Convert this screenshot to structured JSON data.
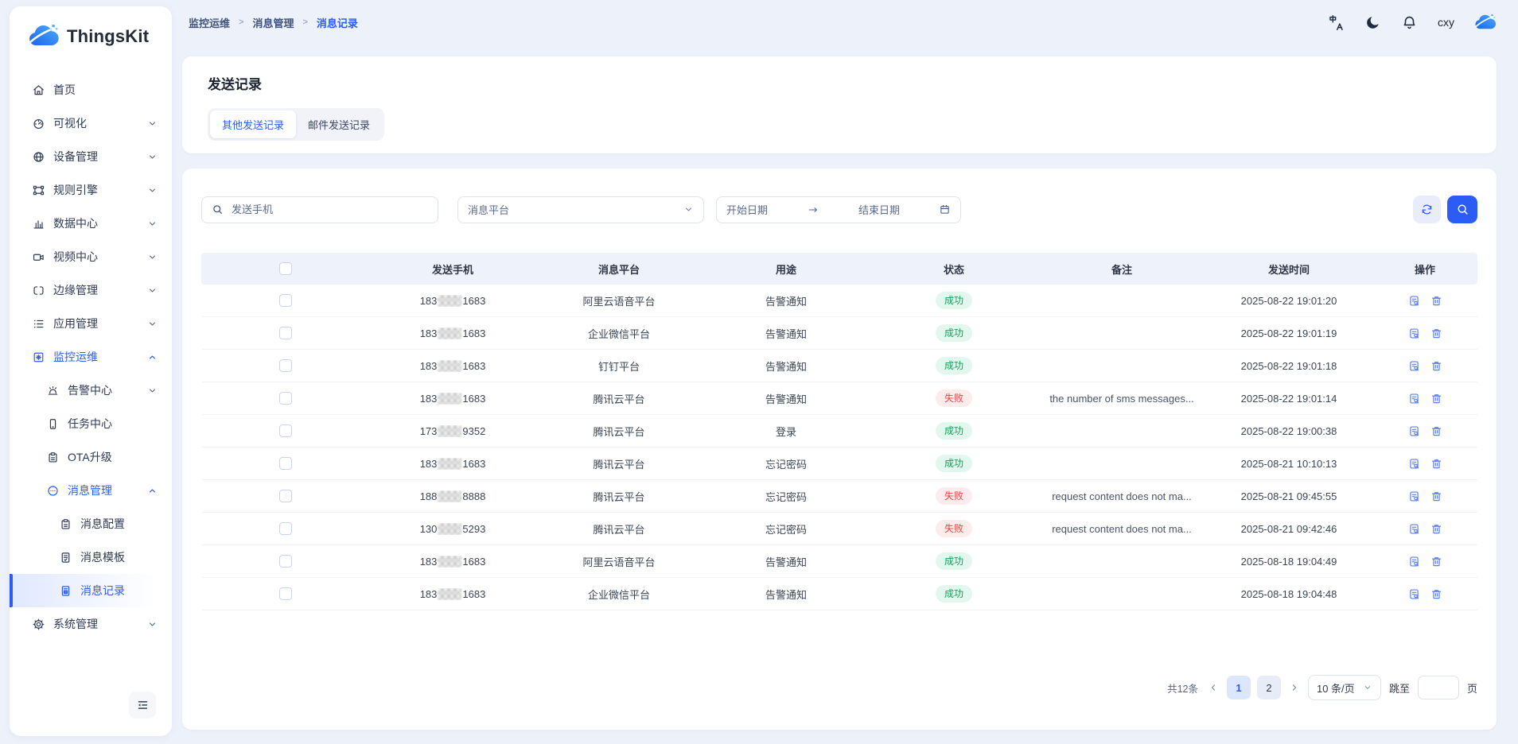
{
  "app": {
    "logo_text": "ThingsKit",
    "logo_icon": "cloud-logo-icon"
  },
  "topbar": {
    "breadcrumb": [
      "监控运维",
      "消息管理",
      "消息记录"
    ],
    "icons": [
      "translate-icon",
      "dark-mode-moon-icon",
      "notification-bell-icon"
    ],
    "username": "cxy",
    "avatar_icon": "cloud-avatar-icon"
  },
  "sidebar": {
    "items": [
      {
        "label": "首页",
        "icon": "home-icon",
        "depth": 0
      },
      {
        "label": "可视化",
        "icon": "visualization-icon",
        "depth": 0,
        "chevron": "down"
      },
      {
        "label": "设备管理",
        "icon": "device-icon",
        "depth": 0,
        "chevron": "down"
      },
      {
        "label": "规则引擎",
        "icon": "rule-engine-icon",
        "depth": 0,
        "chevron": "down"
      },
      {
        "label": "数据中心",
        "icon": "data-center-icon",
        "depth": 0,
        "chevron": "down"
      },
      {
        "label": "视频中心",
        "icon": "video-center-icon",
        "depth": 0,
        "chevron": "down"
      },
      {
        "label": "边缘管理",
        "icon": "edge-icon",
        "depth": 0,
        "chevron": "down"
      },
      {
        "label": "应用管理",
        "icon": "app-icon",
        "depth": 0,
        "chevron": "down"
      },
      {
        "label": "监控运维",
        "icon": "monitor-icon",
        "depth": 0,
        "chevron": "up",
        "highlight": true
      },
      {
        "label": "告警中心",
        "icon": "alarm-icon",
        "depth": 1,
        "chevron": "down"
      },
      {
        "label": "任务中心",
        "icon": "task-icon",
        "depth": 1
      },
      {
        "label": "OTA升级",
        "icon": "ota-icon",
        "depth": 1
      },
      {
        "label": "消息管理",
        "icon": "message-icon",
        "depth": 1,
        "chevron": "up",
        "highlight": true
      },
      {
        "label": "消息配置",
        "icon": "config-icon",
        "depth": 2
      },
      {
        "label": "消息模板",
        "icon": "template-icon",
        "depth": 2
      },
      {
        "label": "消息记录",
        "icon": "record-icon",
        "depth": 2,
        "active": true
      },
      {
        "label": "系统管理",
        "icon": "system-icon",
        "depth": 0,
        "chevron": "down"
      }
    ],
    "collapse_icon": "collapse-sidebar-icon"
  },
  "page": {
    "title": "发送记录",
    "tabs": [
      {
        "label": "其他发送记录",
        "active": true
      },
      {
        "label": "邮件发送记录",
        "active": false
      }
    ]
  },
  "filters": {
    "phone_placeholder": "发送手机",
    "platform_placeholder": "消息平台",
    "date_start_placeholder": "开始日期",
    "date_end_placeholder": "结束日期",
    "icons": {
      "search": "search-icon",
      "refresh": "refresh-icon",
      "calendar": "calendar-icon",
      "range_arrow": "arrow-right-icon"
    }
  },
  "table": {
    "columns": [
      "发送手机",
      "消息平台",
      "用途",
      "状态",
      "备注",
      "发送时间",
      "操作"
    ],
    "row_actions": [
      "detail-icon",
      "delete-icon"
    ],
    "rows": [
      {
        "phone_prefix": "183",
        "phone_suffix": "1683",
        "platform": "阿里云语音平台",
        "purpose": "告警通知",
        "status": "成功",
        "status_type": "success",
        "remark": "",
        "time": "2025-08-22 19:01:20"
      },
      {
        "phone_prefix": "183",
        "phone_suffix": "1683",
        "platform": "企业微信平台",
        "purpose": "告警通知",
        "status": "成功",
        "status_type": "success",
        "remark": "",
        "time": "2025-08-22 19:01:19"
      },
      {
        "phone_prefix": "183",
        "phone_suffix": "1683",
        "platform": "钉钉平台",
        "purpose": "告警通知",
        "status": "成功",
        "status_type": "success",
        "remark": "",
        "time": "2025-08-22 19:01:18"
      },
      {
        "phone_prefix": "183",
        "phone_suffix": "1683",
        "platform": "腾讯云平台",
        "purpose": "告警通知",
        "status": "失败",
        "status_type": "fail",
        "remark": "the number of sms messages...",
        "time": "2025-08-22 19:01:14"
      },
      {
        "phone_prefix": "173",
        "phone_suffix": "9352",
        "platform": "腾讯云平台",
        "purpose": "登录",
        "status": "成功",
        "status_type": "success",
        "remark": "",
        "time": "2025-08-22 19:00:38"
      },
      {
        "phone_prefix": "183",
        "phone_suffix": "1683",
        "platform": "腾讯云平台",
        "purpose": "忘记密码",
        "status": "成功",
        "status_type": "success",
        "remark": "",
        "time": "2025-08-21 10:10:13"
      },
      {
        "phone_prefix": "188",
        "phone_suffix": "8888",
        "platform": "腾讯云平台",
        "purpose": "忘记密码",
        "status": "失败",
        "status_type": "fail",
        "remark": "request content does not ma...",
        "time": "2025-08-21 09:45:55"
      },
      {
        "phone_prefix": "130",
        "phone_suffix": "5293",
        "platform": "腾讯云平台",
        "purpose": "忘记密码",
        "status": "失败",
        "status_type": "fail",
        "remark": "request content does not ma...",
        "time": "2025-08-21 09:42:46"
      },
      {
        "phone_prefix": "183",
        "phone_suffix": "1683",
        "platform": "阿里云语音平台",
        "purpose": "告警通知",
        "status": "成功",
        "status_type": "success",
        "remark": "",
        "time": "2025-08-18 19:04:49"
      },
      {
        "phone_prefix": "183",
        "phone_suffix": "1683",
        "platform": "企业微信平台",
        "purpose": "告警通知",
        "status": "成功",
        "status_type": "success",
        "remark": "",
        "time": "2025-08-18 19:04:48"
      }
    ]
  },
  "pagination": {
    "total": "共12条",
    "pages": [
      "1",
      "2"
    ],
    "active_page": "1",
    "page_size": "10 条/页",
    "jump_label": "跳至",
    "page_unit": "页"
  },
  "colors": {
    "primary": "#2b5cf6",
    "background": "#edf1fa",
    "success_text": "#17a05d",
    "success_bg": "#e2f8ee",
    "fail_text": "#e84545",
    "fail_bg": "#fdecec",
    "table_header_bg": "#eef2fb"
  }
}
